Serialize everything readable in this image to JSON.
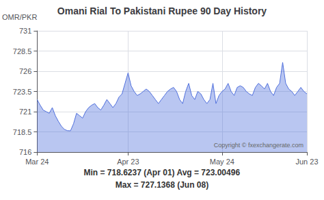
{
  "chart_data": {
    "type": "area",
    "title": "Omani Rial To Pakistani Rupee 90 Day History",
    "ylabel": "OMR/PKR",
    "annotations": [
      "Copyright © fxexchangerate.com",
      "Min = 718.6237 (Apr 01) Avg = 723.00496",
      "Max = 727.1368 (Jun 08)"
    ],
    "categories": [
      "Mar 24",
      null,
      null,
      null,
      null,
      null,
      null,
      null,
      null,
      null,
      null,
      null,
      null,
      null,
      null,
      null,
      null,
      null,
      null,
      null,
      null,
      null,
      null,
      null,
      null,
      null,
      null,
      null,
      null,
      null,
      "Apr 23",
      null,
      null,
      null,
      null,
      null,
      null,
      null,
      null,
      null,
      null,
      null,
      null,
      null,
      null,
      null,
      null,
      null,
      null,
      null,
      null,
      null,
      null,
      null,
      null,
      null,
      null,
      null,
      null,
      null,
      null,
      "May 24",
      null,
      null,
      null,
      null,
      null,
      null,
      null,
      null,
      null,
      null,
      null,
      null,
      null,
      null,
      null,
      null,
      null,
      null,
      null,
      null,
      null,
      null,
      null,
      null,
      null,
      null,
      null,
      "Jun 23"
    ],
    "values": [
      722.5,
      721.8,
      721.2,
      721.0,
      720.8,
      721.5,
      720.5,
      719.8,
      719.2,
      718.8,
      718.65,
      718.63,
      719.5,
      720.8,
      720.5,
      720.2,
      721.0,
      721.5,
      721.8,
      722.0,
      721.5,
      721.2,
      721.8,
      722.5,
      722.0,
      721.5,
      722.0,
      722.8,
      723.2,
      724.5,
      725.8,
      724.2,
      723.5,
      723.0,
      723.2,
      723.5,
      723.8,
      723.5,
      723.0,
      722.5,
      722.0,
      722.5,
      723.0,
      723.5,
      723.8,
      724.0,
      723.5,
      722.5,
      722.0,
      723.5,
      724.5,
      723.0,
      722.5,
      723.5,
      723.2,
      722.5,
      722.0,
      722.5,
      724.5,
      722.0,
      723.0,
      723.5,
      723.8,
      724.5,
      723.5,
      723.0,
      724.0,
      724.2,
      724.0,
      723.5,
      723.2,
      723.0,
      724.0,
      724.5,
      724.2,
      723.8,
      724.5,
      723.5,
      723.0,
      724.0,
      724.5,
      727.1,
      724.5,
      723.8,
      723.5,
      723.0,
      723.5,
      724.0,
      723.5,
      723.2
    ],
    "ylim": [
      716,
      731
    ],
    "yticks": [
      716,
      718.5,
      721,
      723.5,
      726,
      728.5,
      731
    ],
    "grid": true
  }
}
